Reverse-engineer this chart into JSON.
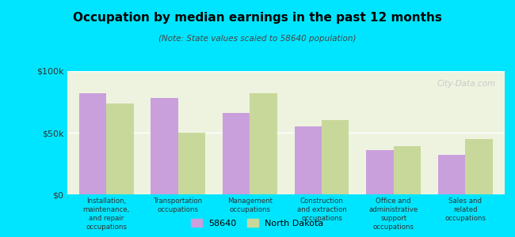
{
  "title": "Occupation by median earnings in the past 12 months",
  "subtitle": "(Note: State values scaled to 58640 population)",
  "categories": [
    "Installation,\nmaintenance,\nand repair\noccupations",
    "Transportation\noccupations",
    "Management\noccupations",
    "Construction\nand extraction\noccupations",
    "Office and\nadministrative\nsupport\noccupations",
    "Sales and\nrelated\noccupations"
  ],
  "values_58640": [
    82000,
    78000,
    66000,
    55000,
    36000,
    32000
  ],
  "values_nd": [
    74000,
    50000,
    82000,
    60000,
    39000,
    45000
  ],
  "color_58640": "#c9a0dc",
  "color_nd": "#c8d89a",
  "background_outer": "#00e5ff",
  "background_inner": "#eef3e0",
  "ylim": [
    0,
    100000
  ],
  "ytick_labels": [
    "$0",
    "$50k",
    "$100k"
  ],
  "legend_labels": [
    "58640",
    "North Dakota"
  ],
  "watermark": "City-Data.com"
}
